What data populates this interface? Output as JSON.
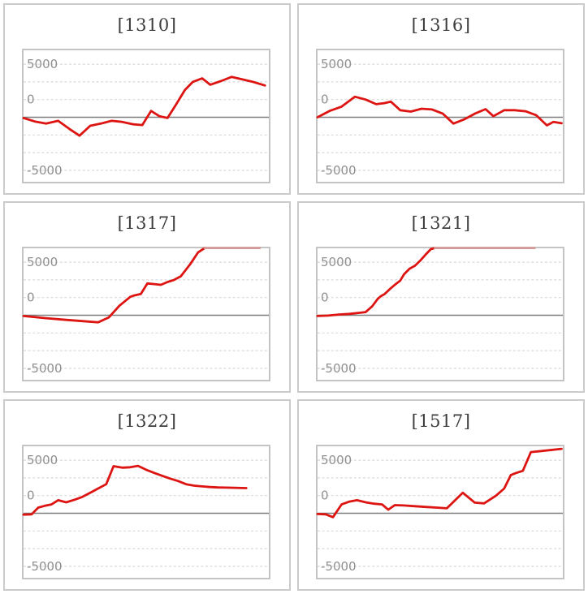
{
  "styles": {
    "background": "#ffffff",
    "tile_border": "#cbcbcb",
    "plot_border": "#c4c4c4",
    "grid_color": "#d9d9d9",
    "zero_line_color": "#7c7c7c",
    "axis_label_color": "#8f8f8f",
    "title_color": "#3d3d3d",
    "series_red": "#dd1512",
    "cap_pink": "#d69a98"
  },
  "layout": {
    "grid": "2x3",
    "legend": "none",
    "x_axis_labels": "none",
    "grid_style": "dashed-horizontal",
    "zero_line": "solid"
  },
  "chart_data": [
    {
      "type": "line",
      "title": "[1310]",
      "y_tick_labels": [
        "5000",
        "0",
        "-5000"
      ],
      "ylim": [
        -9500,
        9750
      ],
      "grid_interval": 2500,
      "cap_from_index": null,
      "cap_color": null,
      "series": [
        {
          "name": "balance-curve",
          "color": "#dd1512",
          "points": [
            [
              0.0,
              -100
            ],
            [
              0.046,
              -600
            ],
            [
              0.092,
              -900
            ],
            [
              0.141,
              -500
            ],
            [
              0.187,
              -1650
            ],
            [
              0.228,
              -2600
            ],
            [
              0.272,
              -1200
            ],
            [
              0.315,
              -900
            ],
            [
              0.359,
              -500
            ],
            [
              0.402,
              -650
            ],
            [
              0.448,
              -1000
            ],
            [
              0.484,
              -1100
            ],
            [
              0.52,
              900
            ],
            [
              0.554,
              150
            ],
            [
              0.587,
              -100
            ],
            [
              0.62,
              1700
            ],
            [
              0.658,
              3850
            ],
            [
              0.69,
              5000
            ],
            [
              0.728,
              5500
            ],
            [
              0.761,
              4600
            ],
            [
              0.804,
              5100
            ],
            [
              0.848,
              5700
            ],
            [
              0.891,
              5350
            ],
            [
              0.935,
              5000
            ],
            [
              0.984,
              4500
            ]
          ]
        }
      ]
    },
    {
      "type": "line",
      "title": "[1316]",
      "y_tick_labels": [
        "5000",
        "0",
        "-5000"
      ],
      "ylim": [
        -9500,
        9750
      ],
      "grid_interval": 2500,
      "cap_from_index": null,
      "cap_color": null,
      "series": [
        {
          "name": "balance-curve",
          "color": "#dd1512",
          "points": [
            [
              0.0,
              0
            ],
            [
              0.049,
              900
            ],
            [
              0.098,
              1500
            ],
            [
              0.152,
              2900
            ],
            [
              0.196,
              2500
            ],
            [
              0.239,
              1850
            ],
            [
              0.272,
              2000
            ],
            [
              0.299,
              2200
            ],
            [
              0.337,
              1000
            ],
            [
              0.38,
              800
            ],
            [
              0.424,
              1200
            ],
            [
              0.467,
              1100
            ],
            [
              0.511,
              500
            ],
            [
              0.554,
              -900
            ],
            [
              0.598,
              -300
            ],
            [
              0.641,
              500
            ],
            [
              0.685,
              1150
            ],
            [
              0.717,
              150
            ],
            [
              0.761,
              1000
            ],
            [
              0.804,
              1000
            ],
            [
              0.848,
              850
            ],
            [
              0.891,
              300
            ],
            [
              0.935,
              -1150
            ],
            [
              0.962,
              -650
            ],
            [
              0.995,
              -850
            ]
          ]
        }
      ]
    },
    {
      "type": "line",
      "title": "[1317]",
      "y_tick_labels": [
        "5000",
        "0",
        "-5000"
      ],
      "ylim": [
        -9500,
        9750
      ],
      "grid_interval": 2500,
      "cap_from_index": 17,
      "cap_color": "#d69a98",
      "series": [
        {
          "name": "balance-curve",
          "color": "#dd1512",
          "points": [
            [
              0.0,
              -100
            ],
            [
              0.087,
              -400
            ],
            [
              0.174,
              -650
            ],
            [
              0.304,
              -1000
            ],
            [
              0.348,
              -300
            ],
            [
              0.391,
              1350
            ],
            [
              0.435,
              2600
            ],
            [
              0.451,
              2800
            ],
            [
              0.478,
              3000
            ],
            [
              0.505,
              4500
            ],
            [
              0.533,
              4400
            ],
            [
              0.56,
              4300
            ],
            [
              0.587,
              4700
            ],
            [
              0.614,
              5000
            ],
            [
              0.641,
              5500
            ],
            [
              0.679,
              7200
            ],
            [
              0.712,
              8900
            ],
            [
              0.739,
              9700
            ],
            [
              0.78,
              9750
            ],
            [
              0.963,
              9750
            ]
          ]
        }
      ]
    },
    {
      "type": "line",
      "title": "[1321]",
      "y_tick_labels": [
        "5000",
        "0",
        "-5000"
      ],
      "ylim": [
        -9500,
        9750
      ],
      "grid_interval": 2500,
      "cap_from_index": 19,
      "cap_color": "#d69a98",
      "series": [
        {
          "name": "balance-curve",
          "color": "#dd1512",
          "points": [
            [
              0.0,
              -100
            ],
            [
              0.043,
              -50
            ],
            [
              0.087,
              100
            ],
            [
              0.13,
              200
            ],
            [
              0.174,
              350
            ],
            [
              0.196,
              450
            ],
            [
              0.223,
              1270
            ],
            [
              0.245,
              2300
            ],
            [
              0.258,
              2700
            ],
            [
              0.274,
              3000
            ],
            [
              0.293,
              3650
            ],
            [
              0.315,
              4300
            ],
            [
              0.337,
              4900
            ],
            [
              0.353,
              5800
            ],
            [
              0.375,
              6580
            ],
            [
              0.397,
              7000
            ],
            [
              0.418,
              7700
            ],
            [
              0.44,
              8550
            ],
            [
              0.462,
              9350
            ],
            [
              0.478,
              9700
            ],
            [
              0.56,
              9750
            ],
            [
              0.885,
              9750
            ]
          ]
        }
      ]
    },
    {
      "type": "line",
      "title": "[1322]",
      "y_tick_labels": [
        "5000",
        "0",
        "-5000"
      ],
      "ylim": [
        -9500,
        9750
      ],
      "grid_interval": 2500,
      "cap_from_index": null,
      "cap_color": null,
      "series": [
        {
          "name": "balance-curve",
          "color": "#dd1512",
          "points": [
            [
              0.0,
              -200
            ],
            [
              0.033,
              -150
            ],
            [
              0.06,
              800
            ],
            [
              0.087,
              1050
            ],
            [
              0.114,
              1250
            ],
            [
              0.141,
              1850
            ],
            [
              0.174,
              1550
            ],
            [
              0.207,
              1900
            ],
            [
              0.239,
              2300
            ],
            [
              0.272,
              2900
            ],
            [
              0.304,
              3500
            ],
            [
              0.337,
              4100
            ],
            [
              0.367,
              6650
            ],
            [
              0.402,
              6450
            ],
            [
              0.435,
              6500
            ],
            [
              0.467,
              6700
            ],
            [
              0.5,
              6150
            ],
            [
              0.533,
              5700
            ],
            [
              0.565,
              5300
            ],
            [
              0.598,
              4900
            ],
            [
              0.63,
              4550
            ],
            [
              0.663,
              4100
            ],
            [
              0.696,
              3900
            ],
            [
              0.728,
              3800
            ],
            [
              0.761,
              3700
            ],
            [
              0.793,
              3650
            ],
            [
              0.826,
              3620
            ],
            [
              0.859,
              3600
            ],
            [
              0.908,
              3550
            ]
          ]
        }
      ]
    },
    {
      "type": "line",
      "title": "[1517]",
      "y_tick_labels": [
        "5000",
        "0",
        "-5000"
      ],
      "ylim": [
        -9500,
        9750
      ],
      "grid_interval": 2500,
      "cap_from_index": null,
      "cap_color": null,
      "series": [
        {
          "name": "balance-curve",
          "color": "#dd1512",
          "points": [
            [
              0.0,
              -100
            ],
            [
              0.033,
              -150
            ],
            [
              0.063,
              -550
            ],
            [
              0.098,
              1250
            ],
            [
              0.13,
              1650
            ],
            [
              0.161,
              1850
            ],
            [
              0.196,
              1550
            ],
            [
              0.23,
              1350
            ],
            [
              0.263,
              1250
            ],
            [
              0.288,
              500
            ],
            [
              0.315,
              1150
            ],
            [
              0.353,
              1100
            ],
            [
              0.397,
              1000
            ],
            [
              0.44,
              900
            ],
            [
              0.484,
              800
            ],
            [
              0.527,
              700
            ],
            [
              0.592,
              2900
            ],
            [
              0.641,
              1500
            ],
            [
              0.679,
              1400
            ],
            [
              0.728,
              2500
            ],
            [
              0.761,
              3500
            ],
            [
              0.788,
              5400
            ],
            [
              0.81,
              5700
            ],
            [
              0.837,
              6000
            ],
            [
              0.87,
              8650
            ],
            [
              0.913,
              8800
            ],
            [
              0.995,
              9100
            ]
          ]
        }
      ]
    }
  ]
}
